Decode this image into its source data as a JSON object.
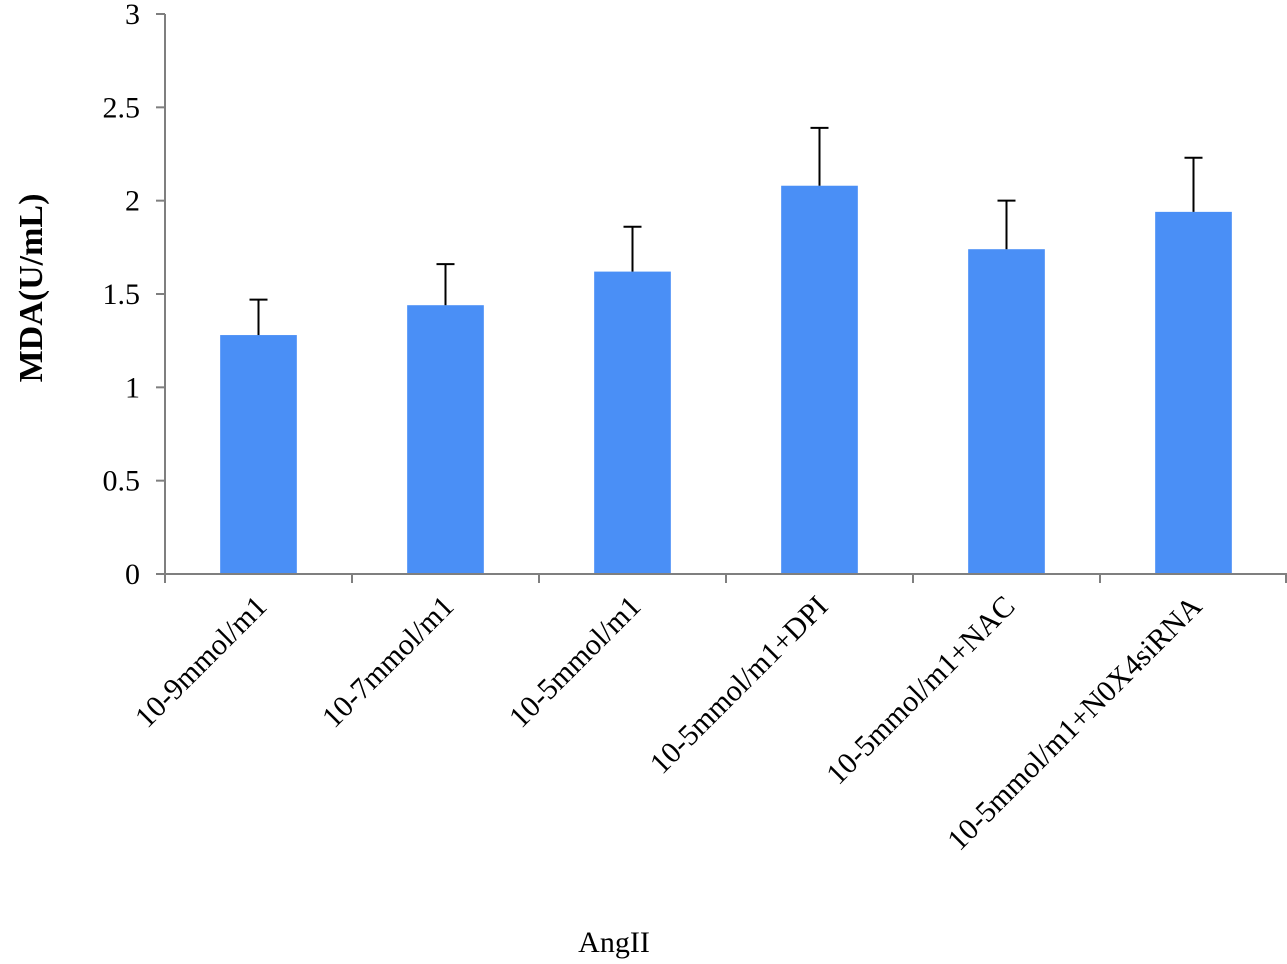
{
  "chart_data": {
    "type": "bar",
    "title": "",
    "xlabel": "AngII",
    "ylabel": "MDA(U/mL)",
    "ylim": [
      0,
      3
    ],
    "yticks": [
      "0",
      "0.5",
      "1",
      "1.5",
      "2",
      "2.5",
      "3"
    ],
    "grid": false,
    "categories": [
      "10-9mmol/m1",
      "10-7mmol/m1",
      "10-5mmol/m1",
      "10-5mmol/m1+DPI",
      "10-5mmol/m1+NAC",
      "10-5mmol/m1+N0X4siRNA"
    ],
    "values": [
      1.28,
      1.44,
      1.62,
      2.08,
      1.74,
      1.94
    ],
    "errors": [
      0.19,
      0.22,
      0.24,
      0.31,
      0.26,
      0.29
    ],
    "bar_color": "#4a8ff6"
  }
}
